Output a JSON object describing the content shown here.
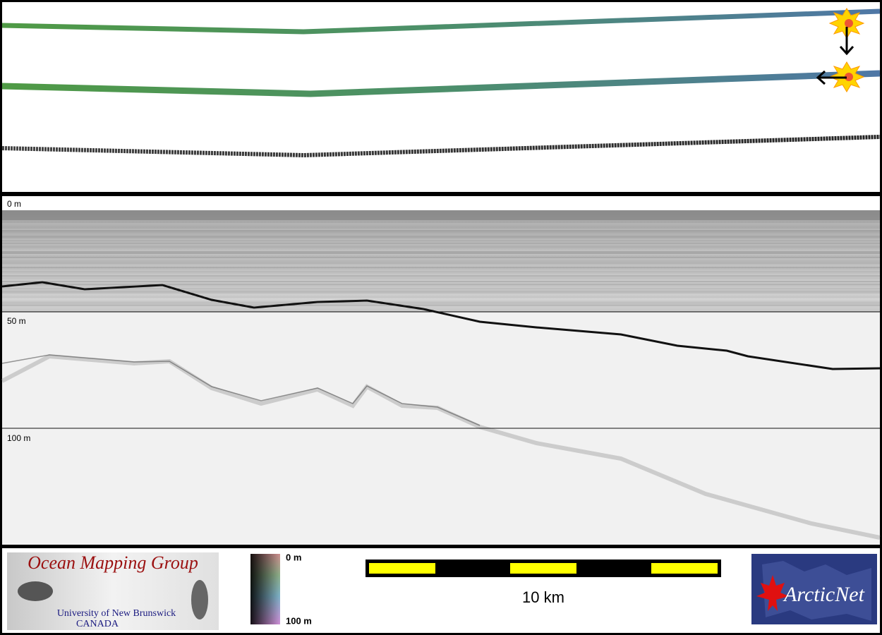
{
  "echogram": {
    "top_label": "0 m",
    "depth_labels": [
      "50 m",
      "100 m"
    ]
  },
  "footer": {
    "logo": {
      "title": "Ocean Mapping Group",
      "university": "University of New Brunswick",
      "country": "CANADA"
    },
    "color_scale": {
      "top": "0 m",
      "bottom": "100 m"
    },
    "scale_bar": {
      "label": "10 km"
    },
    "partner_logo": "ArcticNet"
  }
}
